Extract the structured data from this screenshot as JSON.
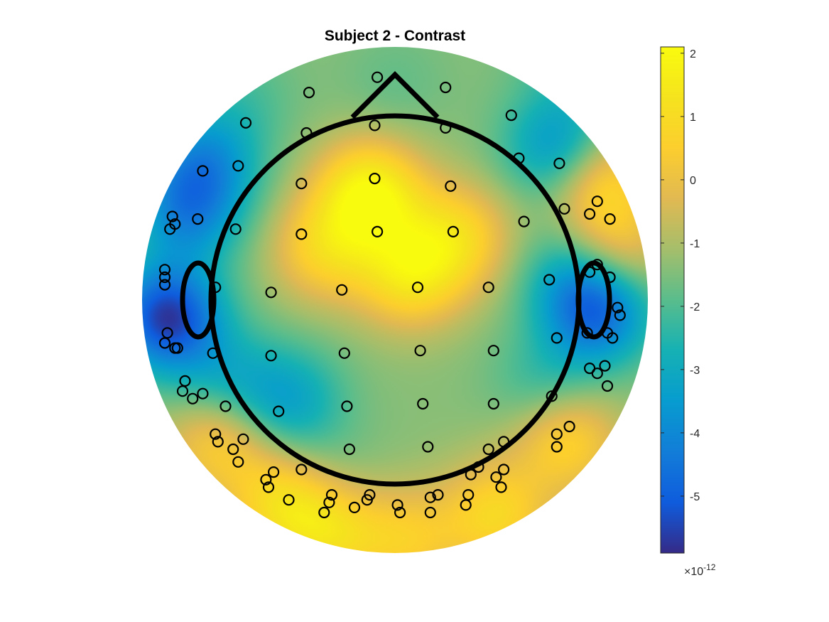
{
  "chart_data": {
    "type": "heatmap",
    "subtype": "eeg-topographic-map",
    "title": "Subject 2 - Contrast",
    "colormap": "parula",
    "colorbar": {
      "location": "right",
      "range": [
        -5.9,
        2.1
      ],
      "ticks": [
        2,
        1,
        0,
        -1,
        -2,
        -3,
        -4,
        -5
      ],
      "tick_labels": [
        "2",
        "1",
        "0",
        "-1",
        "-2",
        "-3",
        "-4",
        "-5"
      ],
      "exponent_prefix": "×10",
      "exponent": "-12"
    },
    "head_outline": {
      "nose": true,
      "ears": true,
      "color": "#000000"
    },
    "electrode_marker": {
      "shape": "circle",
      "fill": "none",
      "color": "#000000"
    },
    "field_peaks": [
      {
        "x": -0.1,
        "y": 0.42,
        "value": 1.95
      },
      {
        "x": 0.06,
        "y": 0.1,
        "value": 1.1
      },
      {
        "x": -0.28,
        "y": 0.2,
        "value": 0.6
      },
      {
        "x": 0.25,
        "y": 0.25,
        "value": 0.7
      },
      {
        "x": -0.45,
        "y": -0.8,
        "value": 0.8
      },
      {
        "x": -0.7,
        "y": -0.55,
        "value": 0.6
      },
      {
        "x": -0.25,
        "y": -0.92,
        "value": 0.7
      },
      {
        "x": 0.4,
        "y": -0.85,
        "value": 0.8
      },
      {
        "x": 0.68,
        "y": -0.55,
        "value": 0.8
      },
      {
        "x": 0.05,
        "y": -0.95,
        "value": 0.3
      },
      {
        "x": 0.81,
        "y": 0.47,
        "value": 0.9
      },
      {
        "x": 0.85,
        "y": 0.18,
        "value": 0.7
      },
      {
        "x": -0.9,
        "y": -0.07,
        "value": -5.6
      },
      {
        "x": -0.82,
        "y": 0.35,
        "value": -3.8
      },
      {
        "x": -0.75,
        "y": 0.55,
        "value": -3.5
      },
      {
        "x": 0.8,
        "y": -0.04,
        "value": -4.8
      },
      {
        "x": 0.65,
        "y": 0.6,
        "value": -3.8
      },
      {
        "x": 0.72,
        "y": 0.12,
        "value": -3.0
      },
      {
        "x": -0.42,
        "y": -0.4,
        "value": -3.2
      },
      {
        "x": -0.67,
        "y": -0.33,
        "value": -2.8
      },
      {
        "x": -0.25,
        "y": -0.7,
        "value": -1.8
      },
      {
        "x": 0.6,
        "y": -0.35,
        "value": -2.5
      },
      {
        "x": 0.0,
        "y": 0.85,
        "value": -1.8
      },
      {
        "x": 0.7,
        "y": 0.95,
        "value": -2.2
      },
      {
        "x": -0.6,
        "y": 0.8,
        "value": -2.0
      }
    ],
    "field_base_value": -1.4,
    "electrodes": [
      {
        "x": -0.07,
        "y": 0.88
      },
      {
        "x": 0.2,
        "y": 0.84
      },
      {
        "x": -0.34,
        "y": 0.82
      },
      {
        "x": 0.46,
        "y": 0.73
      },
      {
        "x": -0.59,
        "y": 0.7
      },
      {
        "x": -0.35,
        "y": 0.66
      },
      {
        "x": -0.08,
        "y": 0.69
      },
      {
        "x": 0.2,
        "y": 0.68
      },
      {
        "x": 0.49,
        "y": 0.56
      },
      {
        "x": 0.65,
        "y": 0.54
      },
      {
        "x": -0.76,
        "y": 0.51
      },
      {
        "x": -0.62,
        "y": 0.53
      },
      {
        "x": -0.37,
        "y": 0.46
      },
      {
        "x": -0.08,
        "y": 0.48
      },
      {
        "x": 0.22,
        "y": 0.45
      },
      {
        "x": -0.88,
        "y": 0.33
      },
      {
        "x": -0.87,
        "y": 0.3
      },
      {
        "x": -0.89,
        "y": 0.28
      },
      {
        "x": -0.78,
        "y": 0.32
      },
      {
        "x": -0.63,
        "y": 0.28
      },
      {
        "x": -0.37,
        "y": 0.26
      },
      {
        "x": -0.07,
        "y": 0.27
      },
      {
        "x": 0.23,
        "y": 0.27
      },
      {
        "x": 0.51,
        "y": 0.31
      },
      {
        "x": 0.67,
        "y": 0.36
      },
      {
        "x": 0.77,
        "y": 0.34
      },
      {
        "x": 0.8,
        "y": 0.39
      },
      {
        "x": 0.85,
        "y": 0.32
      },
      {
        "x": -0.91,
        "y": 0.12
      },
      {
        "x": -0.91,
        "y": 0.09
      },
      {
        "x": -0.91,
        "y": 0.06
      },
      {
        "x": -0.71,
        "y": 0.05
      },
      {
        "x": -0.49,
        "y": 0.03
      },
      {
        "x": -0.21,
        "y": 0.04
      },
      {
        "x": 0.09,
        "y": 0.05
      },
      {
        "x": 0.37,
        "y": 0.05
      },
      {
        "x": 0.61,
        "y": 0.08
      },
      {
        "x": 0.77,
        "y": 0.11
      },
      {
        "x": 0.8,
        "y": 0.14
      },
      {
        "x": 0.85,
        "y": 0.09
      },
      {
        "x": -0.9,
        "y": -0.13
      },
      {
        "x": -0.91,
        "y": -0.17
      },
      {
        "x": -0.87,
        "y": -0.19
      },
      {
        "x": -0.86,
        "y": -0.19
      },
      {
        "x": -0.72,
        "y": -0.21
      },
      {
        "x": -0.49,
        "y": -0.22
      },
      {
        "x": -0.2,
        "y": -0.21
      },
      {
        "x": 0.1,
        "y": -0.2
      },
      {
        "x": 0.39,
        "y": -0.2
      },
      {
        "x": 0.64,
        "y": -0.15
      },
      {
        "x": 0.76,
        "y": -0.13
      },
      {
        "x": 0.84,
        "y": -0.13
      },
      {
        "x": 0.86,
        "y": -0.15
      },
      {
        "x": 0.88,
        "y": -0.03
      },
      {
        "x": 0.89,
        "y": -0.06
      },
      {
        "x": -0.83,
        "y": -0.32
      },
      {
        "x": -0.84,
        "y": -0.36
      },
      {
        "x": -0.8,
        "y": -0.39
      },
      {
        "x": -0.76,
        "y": -0.37
      },
      {
        "x": -0.67,
        "y": -0.42
      },
      {
        "x": -0.46,
        "y": -0.44
      },
      {
        "x": -0.19,
        "y": -0.42
      },
      {
        "x": 0.11,
        "y": -0.41
      },
      {
        "x": 0.39,
        "y": -0.41
      },
      {
        "x": 0.62,
        "y": -0.38
      },
      {
        "x": 0.77,
        "y": -0.27
      },
      {
        "x": 0.8,
        "y": -0.29
      },
      {
        "x": 0.83,
        "y": -0.26
      },
      {
        "x": 0.84,
        "y": -0.34
      },
      {
        "x": -0.71,
        "y": -0.53
      },
      {
        "x": -0.7,
        "y": -0.56
      },
      {
        "x": -0.64,
        "y": -0.59
      },
      {
        "x": -0.6,
        "y": -0.55
      },
      {
        "x": -0.18,
        "y": -0.59
      },
      {
        "x": 0.13,
        "y": -0.58
      },
      {
        "x": 0.43,
        "y": -0.56
      },
      {
        "x": 0.69,
        "y": -0.5
      },
      {
        "x": 0.64,
        "y": -0.53
      },
      {
        "x": 0.64,
        "y": -0.58
      },
      {
        "x": -0.62,
        "y": -0.64
      },
      {
        "x": -0.51,
        "y": -0.71
      },
      {
        "x": -0.5,
        "y": -0.74
      },
      {
        "x": -0.48,
        "y": -0.68
      },
      {
        "x": -0.37,
        "y": -0.67
      },
      {
        "x": 0.43,
        "y": -0.67
      },
      {
        "x": 0.4,
        "y": -0.7
      },
      {
        "x": 0.42,
        "y": -0.74
      },
      {
        "x": -0.42,
        "y": -0.79
      },
      {
        "x": -0.25,
        "y": -0.77
      },
      {
        "x": -0.26,
        "y": -0.8
      },
      {
        "x": -0.16,
        "y": -0.82
      },
      {
        "x": -0.11,
        "y": -0.79
      },
      {
        "x": -0.1,
        "y": -0.77
      },
      {
        "x": 0.01,
        "y": -0.81
      },
      {
        "x": 0.02,
        "y": -0.84
      },
      {
        "x": 0.14,
        "y": -0.78
      },
      {
        "x": 0.17,
        "y": -0.77
      },
      {
        "x": 0.29,
        "y": -0.77
      },
      {
        "x": 0.28,
        "y": -0.81
      },
      {
        "x": -0.28,
        "y": -0.84
      },
      {
        "x": 0.14,
        "y": -0.84
      },
      {
        "x": 0.3,
        "y": -0.69
      },
      {
        "x": 0.33,
        "y": -0.66
      },
      {
        "x": 0.37,
        "y": -0.59
      }
    ]
  }
}
